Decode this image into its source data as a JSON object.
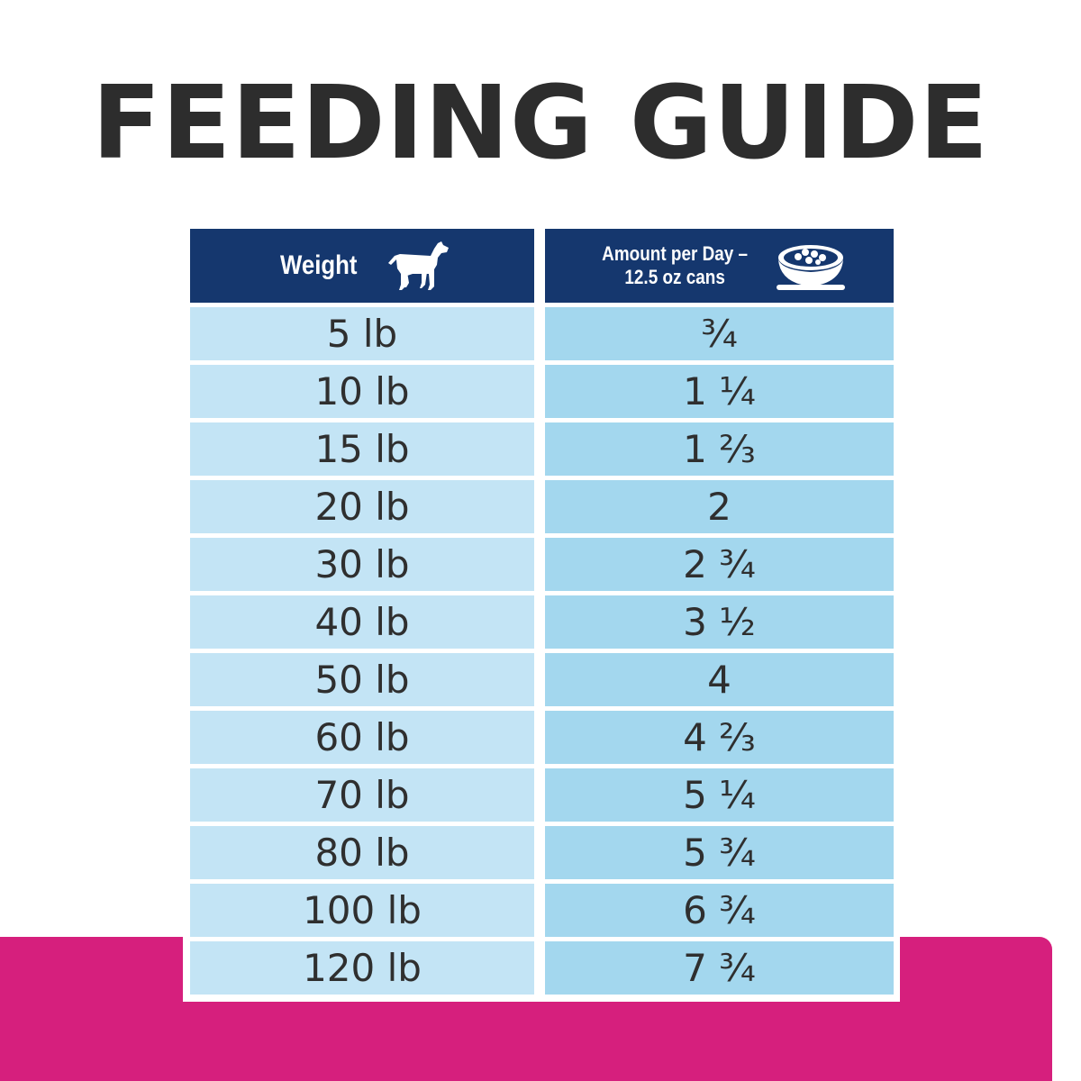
{
  "title": "FEEDING GUIDE",
  "colors": {
    "title_text": "#2d2d2d",
    "header_bg": "#15376e",
    "weight_cell_bg": "#c3e4f5",
    "amount_cell_bg": "#a3d7ee",
    "accent_band": "#d61f7d"
  },
  "table": {
    "headers": {
      "weight": "Weight",
      "weight_icon": "dog-icon",
      "amount_line1": "Amount per Day –",
      "amount_line2": "12.5 oz cans",
      "amount_icon": "food-bowl-icon"
    },
    "rows": [
      {
        "weight": "5 lb",
        "amount": "¾"
      },
      {
        "weight": "10 lb",
        "amount": "1 ¼"
      },
      {
        "weight": "15 lb",
        "amount": "1 ⅔"
      },
      {
        "weight": "20 lb",
        "amount": "2"
      },
      {
        "weight": "30 lb",
        "amount": "2 ¾"
      },
      {
        "weight": "40 lb",
        "amount": "3 ½"
      },
      {
        "weight": "50 lb",
        "amount": "4"
      },
      {
        "weight": "60 lb",
        "amount": "4 ⅔"
      },
      {
        "weight": "70 lb",
        "amount": "5 ¼"
      },
      {
        "weight": "80 lb",
        "amount": "5 ¾"
      },
      {
        "weight": "100 lb",
        "amount": "6 ¾"
      },
      {
        "weight": "120 lb",
        "amount": "7 ¾"
      }
    ]
  }
}
